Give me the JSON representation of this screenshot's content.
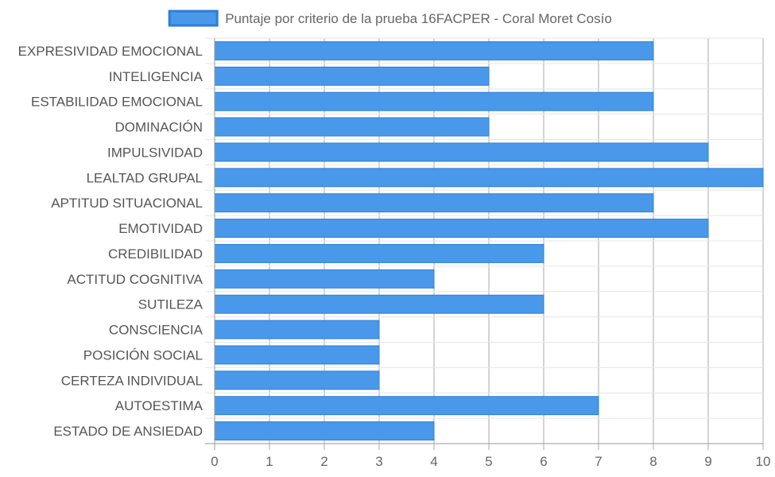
{
  "chart_data": {
    "type": "bar",
    "orientation": "horizontal",
    "categories": [
      "EXPRESIVIDAD EMOCIONAL",
      "INTELIGENCIA",
      "ESTABILIDAD EMOCIONAL",
      "DOMINACIÓN",
      "IMPULSIVIDAD",
      "LEALTAD GRUPAL",
      "APTITUD SITUACIONAL",
      "EMOTIVIDAD",
      "CREDIBILIDAD",
      "ACTITUD COGNITIVA",
      "SUTILEZA",
      "CONSCIENCIA",
      "POSICIÓN SOCIAL",
      "CERTEZA INDIVIDUAL",
      "AUTOESTIMA",
      "ESTADO DE ANSIEDAD"
    ],
    "series": [
      {
        "name": "Puntaje por criterio de la prueba 16FACPER - Coral Moret Cosío",
        "values": [
          8,
          5,
          8,
          5,
          9,
          10,
          8,
          9,
          6,
          4,
          6,
          3,
          3,
          3,
          7,
          4
        ],
        "color": "#4a98e9",
        "border_color": "#2a7fd9"
      }
    ],
    "xlim": [
      0,
      10
    ],
    "x_ticks": [
      "0",
      "1",
      "2",
      "3",
      "4",
      "5",
      "6",
      "7",
      "8",
      "9",
      "10"
    ],
    "grid": true,
    "legend_position": "top",
    "title": "",
    "xlabel": "",
    "ylabel": ""
  }
}
